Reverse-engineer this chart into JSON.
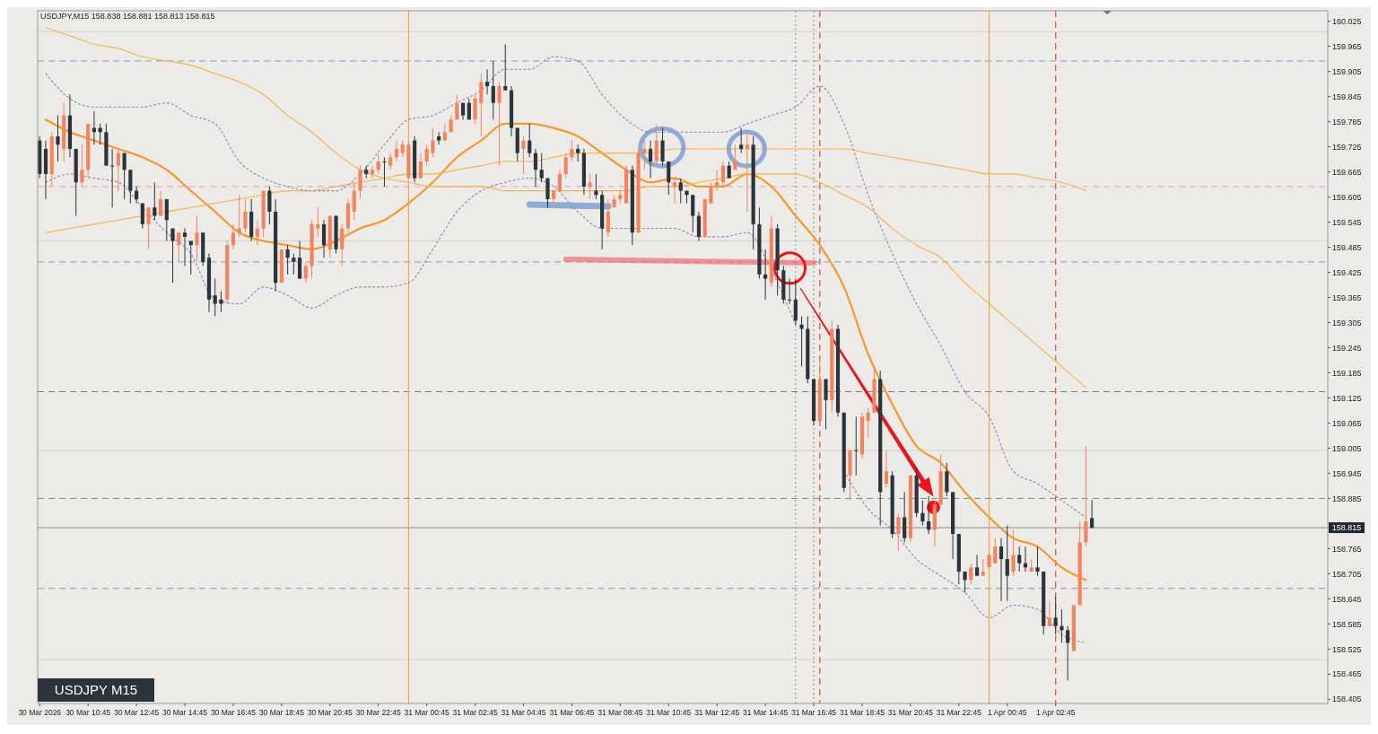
{
  "chart_data": {
    "type": "candlestick",
    "title": "USDJPY,M15  158.838 158.881 158.813 158.815",
    "annotations": [
      "USDJPY M15"
    ],
    "colors": [
      "#2b333b",
      "#2b333b",
      "#f4845f",
      "#2b333b",
      "#f4845f",
      "#2b333b",
      "#2b333b",
      "#f4845f",
      "#f4845f",
      "#2b333b",
      "#2b333b",
      "#2b333b",
      "#2b333b",
      "#f4845f",
      "#2b333b",
      "#2b333b",
      "#2b333b",
      "#2b333b",
      "#f4845f",
      "#2b333b",
      "#f4845f",
      "#2b333b",
      "#2b333b",
      "#f4845f",
      "#2b333b",
      "#2b333b",
      "#f4845f",
      "#2b333b",
      "#2b333b",
      "#2b333b",
      "#2b333b",
      "#f4845f",
      "#f4845f",
      "#f4845f",
      "#f4845f",
      "#2b333b",
      "#f4845f",
      "#f4845f",
      "#2b333b",
      "#2b333b",
      "#f4845f",
      "#2b333b",
      "#2b333b",
      "#2b333b",
      "#f4845f",
      "#f4845f",
      "#f4845f",
      "#2b333b",
      "#f4845f",
      "#2b333b",
      "#f4845f",
      "#f4845f",
      "#f4845f",
      "#f4845f",
      "#2b333b",
      "#f4845f",
      "#f4845f",
      "#2b333b",
      "#f4845f",
      "#f4845f",
      "#f4845f",
      "#f4845f",
      "#2b333b",
      "#f4845f",
      "#f4845f",
      "#f4845f",
      "#2b333b",
      "#f4845f",
      "#f4845f",
      "#f4845f",
      "#2b333b",
      "#2b333b",
      "#f4845f",
      "#f4845f",
      "#2b333b",
      "#2b333b",
      "#f4845f",
      "#2b333b",
      "#2b333b",
      "#2b333b",
      "#f4845f",
      "#2b333b",
      "#2b333b",
      "#2b333b",
      "#2b333b",
      "#f4845f",
      "#f4845f",
      "#f4845f",
      "#f4845f",
      "#2b333b",
      "#2b333b",
      "#f4845f",
      "#2b333b",
      "#2b333b",
      "#f4845f",
      "#f4845f",
      "#f4845f",
      "#f4845f",
      "#2b333b",
      "#f4845f",
      "#f4845f",
      "#2b333b",
      "#f4845f",
      "#2b333b",
      "#2b333b",
      "#f4845f",
      "#2b333b",
      "#2b333b",
      "#2b333b",
      "#2b333b",
      "#f4845f",
      "#f4845f",
      "#f4845f",
      "#f4845f",
      "#2b333b",
      "#f4845f",
      "#2b333b",
      "#f4845f",
      "#2b333b",
      "#2b333b",
      "#2b333b",
      "#f4845f",
      "#2b333b",
      "#2b333b",
      "#2b333b",
      "#2b333b",
      "#2b333b",
      "#2b333b",
      "#2b333b",
      "#f4845f",
      "#2b333b",
      "#f4845f",
      "#2b333b",
      "#2b333b",
      "#f4845f",
      "#2b333b",
      "#f4845f",
      "#f4845f",
      "#f4845f",
      "#2b333b",
      "#f4845f",
      "#2b333b",
      "#f4845f",
      "#2b333b",
      "#f4845f",
      "#2b333b",
      "#2b333b",
      "#2b333b",
      "#f4845f",
      "#f4845f",
      "#2b333b",
      "#2b333b",
      "#2b333b",
      "#2b333b",
      "#f4845f",
      "#2b333b",
      "#f4845f",
      "#f4845f",
      "#f4845f",
      "#2b333b",
      "#2b333b",
      "#f4845f",
      "#2b333b",
      "#2b333b",
      "#f4845f",
      "#2b333b",
      "#2b333b",
      "#f4845f",
      "#2b333b",
      "#2b333b",
      "#2b333b",
      "#f4845f",
      "#f4845f",
      "#f4845f",
      "#2b333b"
    ],
    "x": [
      "2026-03-30T08:45",
      "2026-03-30T09:00",
      "2026-03-30T09:15",
      "2026-03-30T09:30",
      "2026-03-30T09:45",
      "2026-03-30T10:00",
      "2026-03-30T10:15",
      "2026-03-30T10:30",
      "2026-03-30T10:45",
      "2026-03-30T11:00",
      "2026-03-30T11:15",
      "2026-03-30T11:30",
      "2026-03-30T11:45",
      "2026-03-30T12:00",
      "2026-03-30T12:15",
      "2026-03-30T12:30",
      "2026-03-30T12:45",
      "2026-03-30T13:00",
      "2026-03-30T13:15",
      "2026-03-30T13:30",
      "2026-03-30T13:45",
      "2026-03-30T14:00",
      "2026-03-30T14:15",
      "2026-03-30T14:30",
      "2026-03-30T14:45",
      "2026-03-30T15:00",
      "2026-03-30T15:15",
      "2026-03-30T15:30",
      "2026-03-30T15:45",
      "2026-03-30T16:00",
      "2026-03-30T16:15",
      "2026-03-30T16:30",
      "2026-03-30T16:45",
      "2026-03-30T17:00",
      "2026-03-30T17:15",
      "2026-03-30T17:30",
      "2026-03-30T17:45",
      "2026-03-30T18:00",
      "2026-03-30T18:15",
      "2026-03-30T18:30",
      "2026-03-30T18:45",
      "2026-03-30T19:00",
      "2026-03-30T19:15",
      "2026-03-30T19:30",
      "2026-03-30T19:45",
      "2026-03-30T20:00",
      "2026-03-30T20:15",
      "2026-03-30T20:30",
      "2026-03-30T20:45",
      "2026-03-30T21:00",
      "2026-03-30T21:15",
      "2026-03-30T21:30",
      "2026-03-30T21:45",
      "2026-03-30T22:00",
      "2026-03-30T22:15",
      "2026-03-30T22:30",
      "2026-03-30T22:45",
      "2026-03-30T23:00",
      "2026-03-30T23:15",
      "2026-03-30T23:30",
      "2026-03-30T23:45",
      "2026-03-31T00:00",
      "2026-03-31T00:15",
      "2026-03-31T00:30",
      "2026-03-31T00:45",
      "2026-03-31T01:00",
      "2026-03-31T01:15",
      "2026-03-31T01:30",
      "2026-03-31T01:45",
      "2026-03-31T02:00",
      "2026-03-31T02:15",
      "2026-03-31T02:30",
      "2026-03-31T02:45",
      "2026-03-31T03:00",
      "2026-03-31T03:15",
      "2026-03-31T03:30",
      "2026-03-31T03:45",
      "2026-03-31T04:00",
      "2026-03-31T04:15",
      "2026-03-31T04:30",
      "2026-03-31T04:45",
      "2026-03-31T05:00",
      "2026-03-31T05:15",
      "2026-03-31T05:30",
      "2026-03-31T05:45",
      "2026-03-31T06:00",
      "2026-03-31T06:15",
      "2026-03-31T06:30",
      "2026-03-31T06:45",
      "2026-03-31T07:00",
      "2026-03-31T07:15",
      "2026-03-31T07:30",
      "2026-03-31T07:45",
      "2026-03-31T08:00",
      "2026-03-31T08:15",
      "2026-03-31T08:30",
      "2026-03-31T08:45",
      "2026-03-31T09:00",
      "2026-03-31T09:15",
      "2026-03-31T09:30",
      "2026-03-31T09:45",
      "2026-03-31T10:00",
      "2026-03-31T10:15",
      "2026-03-31T10:30",
      "2026-03-31T10:45",
      "2026-03-31T11:00",
      "2026-03-31T11:15",
      "2026-03-31T11:30",
      "2026-03-31T11:45",
      "2026-03-31T12:00",
      "2026-03-31T12:15",
      "2026-03-31T12:30",
      "2026-03-31T12:45",
      "2026-03-31T13:00",
      "2026-03-31T13:15",
      "2026-03-31T13:30",
      "2026-03-31T13:45",
      "2026-03-31T14:00",
      "2026-03-31T14:15",
      "2026-03-31T14:30",
      "2026-03-31T14:45",
      "2026-03-31T15:00",
      "2026-03-31T15:15",
      "2026-03-31T15:30",
      "2026-03-31T15:45",
      "2026-03-31T16:00",
      "2026-03-31T16:15",
      "2026-03-31T16:30",
      "2026-03-31T16:45",
      "2026-03-31T17:00",
      "2026-03-31T17:15",
      "2026-03-31T17:30",
      "2026-03-31T17:45",
      "2026-03-31T18:00",
      "2026-03-31T18:15",
      "2026-03-31T18:30",
      "2026-03-31T18:45",
      "2026-03-31T19:00",
      "2026-03-31T19:15",
      "2026-03-31T19:30",
      "2026-03-31T19:45",
      "2026-03-31T20:00",
      "2026-03-31T20:15",
      "2026-03-31T20:30",
      "2026-03-31T20:45",
      "2026-03-31T21:00",
      "2026-03-31T21:15",
      "2026-03-31T21:30",
      "2026-03-31T21:45",
      "2026-03-31T22:00",
      "2026-03-31T22:15",
      "2026-03-31T22:30",
      "2026-03-31T22:45",
      "2026-03-31T23:00",
      "2026-03-31T23:15",
      "2026-03-31T23:30",
      "2026-03-31T23:45",
      "2026-04-01T00:00",
      "2026-04-01T00:15",
      "2026-04-01T00:30",
      "2026-04-01T00:45",
      "2026-04-01T01:00",
      "2026-04-01T01:15",
      "2026-04-01T01:30",
      "2026-04-01T01:45",
      "2026-04-01T02:00",
      "2026-04-01T02:15",
      "2026-04-01T02:30",
      "2026-04-01T02:45",
      "2026-04-01T03:00",
      "2026-04-01T03:15",
      "2026-04-01T03:30",
      "2026-04-01T03:45",
      "2026-04-01T04:00",
      "2026-04-01T04:15"
    ],
    "ohlc": [
      [
        159.74,
        159.75,
        159.65,
        159.66
      ],
      [
        159.72,
        159.74,
        159.6,
        159.66
      ],
      [
        159.66,
        159.76,
        159.63,
        159.75
      ],
      [
        159.75,
        159.8,
        159.69,
        159.73
      ],
      [
        159.72,
        159.83,
        159.69,
        159.8
      ],
      [
        159.8,
        159.85,
        159.7,
        159.72
      ],
      [
        159.72,
        159.72,
        159.56,
        159.64
      ],
      [
        159.64,
        159.73,
        159.63,
        159.67
      ],
      [
        159.67,
        159.78,
        159.65,
        159.78
      ],
      [
        159.77,
        159.81,
        159.73,
        159.76
      ],
      [
        159.77,
        159.78,
        159.73,
        159.76
      ],
      [
        159.76,
        159.78,
        159.68,
        159.68
      ],
      [
        159.68,
        159.72,
        159.58,
        159.68
      ],
      [
        159.68,
        159.72,
        159.62,
        159.71
      ],
      [
        159.71,
        159.71,
        159.6,
        159.67
      ],
      [
        159.67,
        159.67,
        159.59,
        159.62
      ],
      [
        159.62,
        159.63,
        159.59,
        159.6
      ],
      [
        159.59,
        159.59,
        159.53,
        159.54
      ],
      [
        159.54,
        159.58,
        159.48,
        159.58
      ],
      [
        159.58,
        159.64,
        159.55,
        159.56
      ],
      [
        159.56,
        159.62,
        159.56,
        159.6
      ],
      [
        159.6,
        159.6,
        159.5,
        159.55
      ],
      [
        159.53,
        159.53,
        159.4,
        159.5
      ],
      [
        159.49,
        159.52,
        159.45,
        159.52
      ],
      [
        159.52,
        159.53,
        159.44,
        159.51
      ],
      [
        159.5,
        159.5,
        159.42,
        159.49
      ],
      [
        159.49,
        159.56,
        159.45,
        159.52
      ],
      [
        159.52,
        159.52,
        159.44,
        159.45
      ],
      [
        159.46,
        159.47,
        159.33,
        159.36
      ],
      [
        159.37,
        159.41,
        159.32,
        159.35
      ],
      [
        159.36,
        159.38,
        159.33,
        159.35
      ],
      [
        159.36,
        159.5,
        159.35,
        159.49
      ],
      [
        159.49,
        159.54,
        159.48,
        159.52
      ],
      [
        159.52,
        159.61,
        159.51,
        159.53
      ],
      [
        159.53,
        159.6,
        159.52,
        159.57
      ],
      [
        159.57,
        159.6,
        159.5,
        159.51
      ],
      [
        159.51,
        159.55,
        159.49,
        159.53
      ],
      [
        159.53,
        159.62,
        159.51,
        159.62
      ],
      [
        159.62,
        159.63,
        159.54,
        159.57
      ],
      [
        159.57,
        159.6,
        159.38,
        159.4
      ],
      [
        159.4,
        159.48,
        159.4,
        159.48
      ],
      [
        159.48,
        159.49,
        159.42,
        159.46
      ],
      [
        159.46,
        159.47,
        159.42,
        159.45
      ],
      [
        159.46,
        159.5,
        159.41,
        159.41
      ],
      [
        159.41,
        159.45,
        159.4,
        159.44
      ],
      [
        159.44,
        159.55,
        159.41,
        159.54
      ],
      [
        159.53,
        159.58,
        159.51,
        159.54
      ],
      [
        159.54,
        159.55,
        159.46,
        159.49
      ],
      [
        159.48,
        159.56,
        159.46,
        159.56
      ],
      [
        159.56,
        159.56,
        159.47,
        159.48
      ],
      [
        159.48,
        159.54,
        159.44,
        159.53
      ],
      [
        159.53,
        159.6,
        159.52,
        159.59
      ],
      [
        159.57,
        159.64,
        159.55,
        159.62
      ],
      [
        159.62,
        159.68,
        159.6,
        159.67
      ],
      [
        159.67,
        159.68,
        159.65,
        159.66
      ],
      [
        159.66,
        159.68,
        159.65,
        159.67
      ],
      [
        159.67,
        159.71,
        159.66,
        159.69
      ],
      [
        159.69,
        159.7,
        159.63,
        159.69
      ],
      [
        159.68,
        159.71,
        159.67,
        159.7
      ],
      [
        159.7,
        159.74,
        159.69,
        159.72
      ],
      [
        159.71,
        159.74,
        159.7,
        159.73
      ],
      [
        159.65,
        159.74,
        159.65,
        159.73
      ],
      [
        159.74,
        159.75,
        159.64,
        159.65
      ],
      [
        159.65,
        159.71,
        159.65,
        159.69
      ],
      [
        159.69,
        159.73,
        159.68,
        159.72
      ],
      [
        159.71,
        159.77,
        159.7,
        159.74
      ],
      [
        159.75,
        159.76,
        159.73,
        159.74
      ],
      [
        159.74,
        159.78,
        159.74,
        159.76
      ],
      [
        159.76,
        159.8,
        159.76,
        159.79
      ],
      [
        159.79,
        159.85,
        159.79,
        159.83
      ],
      [
        159.83,
        159.83,
        159.79,
        159.8
      ],
      [
        159.83,
        159.84,
        159.79,
        159.79
      ],
      [
        159.79,
        159.85,
        159.78,
        159.84
      ],
      [
        159.83,
        159.9,
        159.75,
        159.88
      ],
      [
        159.88,
        159.91,
        159.85,
        159.87
      ],
      [
        159.87,
        159.93,
        159.79,
        159.83
      ],
      [
        159.83,
        159.88,
        159.68,
        159.87
      ],
      [
        159.87,
        159.97,
        159.86,
        159.86
      ],
      [
        159.86,
        159.87,
        159.75,
        159.77
      ],
      [
        159.77,
        159.77,
        159.69,
        159.71
      ],
      [
        159.72,
        159.75,
        159.66,
        159.74
      ],
      [
        159.74,
        159.78,
        159.7,
        159.71
      ],
      [
        159.71,
        159.72,
        159.63,
        159.67
      ],
      [
        159.67,
        159.71,
        159.64,
        159.65
      ],
      [
        159.65,
        159.65,
        159.58,
        159.6
      ],
      [
        159.6,
        159.62,
        159.59,
        159.62
      ],
      [
        159.62,
        159.67,
        159.62,
        159.66
      ],
      [
        159.66,
        159.71,
        159.65,
        159.7
      ],
      [
        159.7,
        159.74,
        159.69,
        159.72
      ],
      [
        159.72,
        159.73,
        159.69,
        159.71
      ],
      [
        159.71,
        159.72,
        159.61,
        159.63
      ],
      [
        159.63,
        159.66,
        159.6,
        159.64
      ],
      [
        159.62,
        159.66,
        159.6,
        159.61
      ],
      [
        159.61,
        159.62,
        159.48,
        159.53
      ],
      [
        159.52,
        159.6,
        159.51,
        159.57
      ],
      [
        159.58,
        159.61,
        159.58,
        159.6
      ],
      [
        159.6,
        159.62,
        159.59,
        159.61
      ],
      [
        159.59,
        159.68,
        159.59,
        159.67
      ],
      [
        159.67,
        159.68,
        159.49,
        159.52
      ],
      [
        159.52,
        159.72,
        159.52,
        159.71
      ],
      [
        159.71,
        159.74,
        159.67,
        159.72
      ],
      [
        159.72,
        159.74,
        159.65,
        159.69
      ],
      [
        159.69,
        159.78,
        159.68,
        159.74
      ],
      [
        159.74,
        159.77,
        159.68,
        159.69
      ],
      [
        159.69,
        159.69,
        159.61,
        159.64
      ],
      [
        159.63,
        159.65,
        159.59,
        159.64
      ],
      [
        159.64,
        159.65,
        159.59,
        159.62
      ],
      [
        159.62,
        159.62,
        159.59,
        159.61
      ],
      [
        159.61,
        159.61,
        159.52,
        159.56
      ],
      [
        159.56,
        159.57,
        159.5,
        159.51
      ],
      [
        159.51,
        159.6,
        159.51,
        159.6
      ],
      [
        159.59,
        159.64,
        159.59,
        159.63
      ],
      [
        159.63,
        159.67,
        159.62,
        159.64
      ],
      [
        159.64,
        159.69,
        159.63,
        159.68
      ],
      [
        159.68,
        159.69,
        159.65,
        159.65
      ],
      [
        159.67,
        159.73,
        159.67,
        159.69
      ],
      [
        159.73,
        159.77,
        159.71,
        159.72
      ],
      [
        159.72,
        159.76,
        159.57,
        159.73
      ],
      [
        159.73,
        159.75,
        159.48,
        159.54
      ],
      [
        159.54,
        159.58,
        159.41,
        159.42
      ],
      [
        159.42,
        159.48,
        159.36,
        159.41
      ],
      [
        159.4,
        159.56,
        159.39,
        159.53
      ],
      [
        159.53,
        159.54,
        159.37,
        159.43
      ],
      [
        159.43,
        159.44,
        159.35,
        159.36
      ],
      [
        159.36,
        159.41,
        159.35,
        159.36
      ],
      [
        159.36,
        159.41,
        159.3,
        159.31
      ],
      [
        159.3,
        159.32,
        159.2,
        159.29
      ],
      [
        159.29,
        159.32,
        159.16,
        159.17
      ],
      [
        159.17,
        159.17,
        159.06,
        159.07
      ],
      [
        159.07,
        159.22,
        159.06,
        159.17
      ],
      [
        159.17,
        159.17,
        159.05,
        159.12
      ],
      [
        159.12,
        159.31,
        159.09,
        159.29
      ],
      [
        159.29,
        159.3,
        159.08,
        159.09
      ],
      [
        159.09,
        159.09,
        158.9,
        158.91
      ],
      [
        158.94,
        159.0,
        158.88,
        159.0
      ],
      [
        159.0,
        159.08,
        158.94,
        159.0
      ],
      [
        158.99,
        159.09,
        158.98,
        159.08
      ],
      [
        159.07,
        159.1,
        159.03,
        159.09
      ],
      [
        159.09,
        159.2,
        159.09,
        159.17
      ],
      [
        159.17,
        159.19,
        158.82,
        158.9
      ],
      [
        158.92,
        159.0,
        158.91,
        158.95
      ],
      [
        158.94,
        158.95,
        158.79,
        158.8
      ],
      [
        158.8,
        158.85,
        158.76,
        158.84
      ],
      [
        158.84,
        158.9,
        158.78,
        158.79
      ],
      [
        158.79,
        158.94,
        158.78,
        158.94
      ],
      [
        158.94,
        158.96,
        158.84,
        158.85
      ],
      [
        158.85,
        158.88,
        158.82,
        158.83
      ],
      [
        158.83,
        158.89,
        158.8,
        158.81
      ],
      [
        158.81,
        158.88,
        158.77,
        158.87
      ],
      [
        158.87,
        158.99,
        158.87,
        158.95
      ],
      [
        158.95,
        158.97,
        158.89,
        158.9
      ],
      [
        158.9,
        158.9,
        158.74,
        158.8
      ],
      [
        158.8,
        158.8,
        158.68,
        158.71
      ],
      [
        158.71,
        158.71,
        158.66,
        158.69
      ],
      [
        158.69,
        158.73,
        158.68,
        158.72
      ],
      [
        158.72,
        158.75,
        158.7,
        158.7
      ],
      [
        158.7,
        158.74,
        158.7,
        158.71
      ],
      [
        158.72,
        158.76,
        158.72,
        158.75
      ],
      [
        158.73,
        158.79,
        158.73,
        158.77
      ],
      [
        158.77,
        158.79,
        158.64,
        158.74
      ],
      [
        158.74,
        158.82,
        158.64,
        158.7
      ],
      [
        158.71,
        158.81,
        158.7,
        158.75
      ],
      [
        158.75,
        158.77,
        158.71,
        158.73
      ],
      [
        158.73,
        158.77,
        158.71,
        158.72
      ],
      [
        158.71,
        158.74,
        158.71,
        158.72
      ],
      [
        158.72,
        158.77,
        158.7,
        158.71
      ],
      [
        158.71,
        158.71,
        158.56,
        158.58
      ],
      [
        158.58,
        158.64,
        158.58,
        158.6
      ],
      [
        158.6,
        158.65,
        158.56,
        158.58
      ],
      [
        158.58,
        158.62,
        158.54,
        158.57
      ],
      [
        158.57,
        158.58,
        158.45,
        158.54
      ],
      [
        158.52,
        158.63,
        158.52,
        158.63
      ],
      [
        158.63,
        158.83,
        158.63,
        158.78
      ],
      [
        158.78,
        159.01,
        158.77,
        158.83
      ],
      [
        158.838,
        158.881,
        158.813,
        158.815
      ]
    ],
    "series": [
      {
        "type": "line",
        "color": "#f39a2e",
        "line_style": "solid",
        "x": [
          "2026-03-30T09:00",
          "2026-03-30T10:00",
          "2026-03-30T11:00",
          "2026-03-30T12:00",
          "2026-03-30T13:00",
          "2026-03-30T14:00",
          "2026-03-30T15:00",
          "2026-03-30T16:00",
          "2026-03-30T17:00",
          "2026-03-30T18:00",
          "2026-03-30T19:00",
          "2026-03-30T20:00",
          "2026-03-30T21:00",
          "2026-03-30T22:00",
          "2026-03-30T23:00",
          "2026-03-31T00:00",
          "2026-03-31T01:00",
          "2026-03-31T02:00",
          "2026-03-31T03:00",
          "2026-03-31T04:00",
          "2026-03-31T05:00",
          "2026-03-31T06:00",
          "2026-03-31T07:00",
          "2026-03-31T08:00",
          "2026-03-31T09:00",
          "2026-03-31T10:00",
          "2026-03-31T11:00",
          "2026-03-31T12:00",
          "2026-03-31T13:00",
          "2026-03-31T14:00",
          "2026-03-31T15:00",
          "2026-03-31T16:00",
          "2026-03-31T17:00",
          "2026-03-31T18:00",
          "2026-03-31T19:00",
          "2026-03-31T20:00",
          "2026-03-31T21:00",
          "2026-03-31T22:00",
          "2026-03-31T23:00",
          "2026-04-01T00:00",
          "2026-04-01T01:00",
          "2026-04-01T02:00",
          "2026-04-01T03:00",
          "2026-04-01T04:00"
        ],
        "values": [
          159.79,
          159.76,
          159.74,
          159.72,
          159.7,
          159.67,
          159.62,
          159.57,
          159.52,
          159.5,
          159.49,
          159.48,
          159.5,
          159.53,
          159.55,
          159.59,
          159.64,
          159.7,
          159.74,
          159.78,
          159.78,
          159.77,
          159.75,
          159.71,
          159.67,
          159.64,
          159.65,
          159.63,
          159.63,
          159.66,
          159.63,
          159.56,
          159.49,
          159.39,
          159.23,
          159.11,
          159.01,
          158.97,
          158.9,
          158.84,
          158.79,
          158.77,
          158.72,
          158.69
        ]
      },
      {
        "type": "line",
        "color": "#f5b24e",
        "line_style": "solid",
        "x": [
          "2026-03-30T09:00",
          "2026-03-30T10:00",
          "2026-03-30T11:00",
          "2026-03-30T12:00",
          "2026-03-30T13:00",
          "2026-03-30T14:00",
          "2026-03-30T15:00",
          "2026-03-30T16:00",
          "2026-03-30T17:00",
          "2026-03-30T18:00",
          "2026-03-30T19:00",
          "2026-03-30T20:00",
          "2026-03-30T21:00",
          "2026-03-30T22:00",
          "2026-03-30T23:00",
          "2026-03-31T00:00",
          "2026-03-31T01:00",
          "2026-03-31T02:00",
          "2026-03-31T03:00",
          "2026-03-31T04:00",
          "2026-03-31T05:00",
          "2026-03-31T06:00",
          "2026-03-31T07:00",
          "2026-03-31T08:00",
          "2026-03-31T09:00",
          "2026-03-31T10:00",
          "2026-03-31T11:00",
          "2026-03-31T12:00",
          "2026-03-31T13:00",
          "2026-03-31T14:00",
          "2026-03-31T15:00",
          "2026-03-31T16:00",
          "2026-03-31T17:00",
          "2026-03-31T18:00",
          "2026-03-31T19:00",
          "2026-03-31T20:00",
          "2026-03-31T21:00",
          "2026-03-31T22:00",
          "2026-03-31T23:00",
          "2026-04-01T00:00",
          "2026-04-01T01:00",
          "2026-04-01T02:00",
          "2026-04-01T03:00",
          "2026-04-01T04:00"
        ],
        "values": [
          160.01,
          159.99,
          159.97,
          159.96,
          159.94,
          159.93,
          159.92,
          159.9,
          159.88,
          159.85,
          159.8,
          159.76,
          159.71,
          159.67,
          159.65,
          159.64,
          159.63,
          159.63,
          159.63,
          159.62,
          159.62,
          159.62,
          159.62,
          159.62,
          159.62,
          159.63,
          159.63,
          159.64,
          159.65,
          159.66,
          159.66,
          159.66,
          159.64,
          159.61,
          159.58,
          159.53,
          159.49,
          159.46,
          159.4,
          159.35,
          159.3,
          159.25,
          159.2,
          159.15
        ]
      },
      {
        "type": "line",
        "color": "#f5b24e",
        "line_style": "solid",
        "x": [
          "2026-03-30T09:00",
          "2026-03-30T10:00",
          "2026-03-30T11:00",
          "2026-03-30T12:00",
          "2026-03-30T13:00",
          "2026-03-30T14:00",
          "2026-03-30T15:00",
          "2026-03-30T16:00",
          "2026-03-30T17:00",
          "2026-03-30T18:00",
          "2026-03-30T19:00",
          "2026-03-30T20:00",
          "2026-03-30T21:00",
          "2026-03-30T22:00",
          "2026-03-30T23:00",
          "2026-03-31T00:00",
          "2026-03-31T01:00",
          "2026-03-31T02:00",
          "2026-03-31T03:00",
          "2026-03-31T04:00",
          "2026-03-31T05:00",
          "2026-03-31T06:00",
          "2026-03-31T07:00",
          "2026-03-31T08:00",
          "2026-03-31T09:00",
          "2026-03-31T10:00",
          "2026-03-31T11:00",
          "2026-03-31T12:00",
          "2026-03-31T13:00",
          "2026-03-31T14:00",
          "2026-03-31T15:00",
          "2026-03-31T16:00",
          "2026-03-31T17:00",
          "2026-03-31T18:00",
          "2026-03-31T19:00",
          "2026-03-31T20:00",
          "2026-03-31T21:00",
          "2026-03-31T22:00",
          "2026-03-31T23:00",
          "2026-04-01T00:00",
          "2026-04-01T01:00",
          "2026-04-01T02:00",
          "2026-04-01T03:00",
          "2026-04-01T04:00"
        ],
        "values": [
          159.52,
          159.53,
          159.54,
          159.55,
          159.56,
          159.57,
          159.58,
          159.59,
          159.6,
          159.61,
          159.62,
          159.62,
          159.63,
          159.64,
          159.65,
          159.66,
          159.66,
          159.67,
          159.68,
          159.69,
          159.69,
          159.7,
          159.71,
          159.71,
          159.71,
          159.71,
          159.72,
          159.72,
          159.72,
          159.72,
          159.72,
          159.72,
          159.72,
          159.72,
          159.71,
          159.7,
          159.69,
          159.68,
          159.67,
          159.66,
          159.66,
          159.65,
          159.64,
          159.62
        ]
      },
      {
        "type": "line",
        "color": "#8a85b5",
        "line_style": "dotted",
        "x": [
          "2026-03-30T09:00",
          "2026-03-30T10:00",
          "2026-03-30T11:00",
          "2026-03-30T12:00",
          "2026-03-30T13:00",
          "2026-03-30T14:00",
          "2026-03-30T15:00",
          "2026-03-30T16:00",
          "2026-03-30T17:00",
          "2026-03-30T18:00",
          "2026-03-30T19:00",
          "2026-03-30T20:00",
          "2026-03-30T21:00",
          "2026-03-30T22:00",
          "2026-03-30T23:00",
          "2026-03-31T00:00",
          "2026-03-31T01:00",
          "2026-03-31T02:00",
          "2026-03-31T03:00",
          "2026-03-31T04:00",
          "2026-03-31T05:00",
          "2026-03-31T06:00",
          "2026-03-31T07:00",
          "2026-03-31T08:00",
          "2026-03-31T09:00",
          "2026-03-31T10:00",
          "2026-03-31T11:00",
          "2026-03-31T12:00",
          "2026-03-31T13:00",
          "2026-03-31T14:00",
          "2026-03-31T15:00",
          "2026-03-31T16:00",
          "2026-03-31T17:00",
          "2026-03-31T18:00",
          "2026-03-31T19:00",
          "2026-03-31T20:00",
          "2026-03-31T21:00",
          "2026-03-31T22:00",
          "2026-03-31T23:00",
          "2026-04-01T00:00",
          "2026-04-01T01:00",
          "2026-04-01T02:00",
          "2026-04-01T03:00",
          "2026-04-01T04:00"
        ],
        "values": [
          159.9,
          159.84,
          159.82,
          159.82,
          159.82,
          159.83,
          159.8,
          159.78,
          159.69,
          159.65,
          159.63,
          159.62,
          159.62,
          159.66,
          159.73,
          159.79,
          159.8,
          159.83,
          159.86,
          159.91,
          159.91,
          159.94,
          159.93,
          159.85,
          159.79,
          159.76,
          159.76,
          159.76,
          159.76,
          159.78,
          159.8,
          159.82,
          159.87,
          159.78,
          159.61,
          159.47,
          159.35,
          159.25,
          159.14,
          159.08,
          158.95,
          158.92,
          158.88,
          158.84
        ]
      },
      {
        "type": "line",
        "color": "#8a85b5",
        "line_style": "dotted",
        "x": [
          "2026-03-30T09:00",
          "2026-03-30T10:00",
          "2026-03-30T11:00",
          "2026-03-30T12:00",
          "2026-03-30T13:00",
          "2026-03-30T14:00",
          "2026-03-30T15:00",
          "2026-03-30T16:00",
          "2026-03-30T17:00",
          "2026-03-30T18:00",
          "2026-03-30T19:00",
          "2026-03-30T20:00",
          "2026-03-30T21:00",
          "2026-03-30T22:00",
          "2026-03-30T23:00",
          "2026-03-31T00:00",
          "2026-03-31T01:00",
          "2026-03-31T02:00",
          "2026-03-31T03:00",
          "2026-03-31T04:00",
          "2026-03-31T05:00",
          "2026-03-31T06:00",
          "2026-03-31T07:00",
          "2026-03-31T08:00",
          "2026-03-31T09:00",
          "2026-03-31T10:00",
          "2026-03-31T11:00",
          "2026-03-31T12:00",
          "2026-03-31T13:00",
          "2026-03-31T14:00",
          "2026-03-31T15:00",
          "2026-03-31T16:00",
          "2026-03-31T17:00",
          "2026-03-31T18:00",
          "2026-03-31T19:00",
          "2026-03-31T20:00",
          "2026-03-31T21:00",
          "2026-03-31T22:00",
          "2026-03-31T23:00",
          "2026-04-01T00:00",
          "2026-04-01T01:00",
          "2026-04-01T02:00",
          "2026-04-01T03:00",
          "2026-04-01T04:00"
        ],
        "values": [
          159.64,
          159.66,
          159.65,
          159.64,
          159.58,
          159.52,
          159.47,
          159.36,
          159.35,
          159.39,
          159.37,
          159.34,
          159.37,
          159.39,
          159.39,
          159.4,
          159.48,
          159.57,
          159.62,
          159.64,
          159.65,
          159.63,
          159.57,
          159.53,
          159.53,
          159.53,
          159.53,
          159.51,
          159.51,
          159.52,
          159.43,
          159.3,
          null,
          158.95,
          158.86,
          158.81,
          158.74,
          158.7,
          158.66,
          158.6,
          158.63,
          158.62,
          158.56,
          158.54
        ]
      }
    ],
    "xlim": [
      "2026-03-30T08:40",
      "2026-04-01T14:00"
    ],
    "xticks": [
      {
        "value": "2026-03-30T08:45",
        "label": "30 Mar 2026"
      },
      {
        "value": "2026-03-30T10:45",
        "label": "30 Mar 10:45"
      },
      {
        "value": "2026-03-30T12:45",
        "label": "30 Mar 12:45"
      },
      {
        "value": "2026-03-30T14:45",
        "label": "30 Mar 14:45"
      },
      {
        "value": "2026-03-30T16:45",
        "label": "30 Mar 16:45"
      },
      {
        "value": "2026-03-30T18:45",
        "label": "30 Mar 18:45"
      },
      {
        "value": "2026-03-30T20:45",
        "label": "30 Mar 20:45"
      },
      {
        "value": "2026-03-30T22:45",
        "label": "30 Mar 22:45"
      },
      {
        "value": "2026-03-31T00:45",
        "label": "31 Mar 00:45"
      },
      {
        "value": "2026-03-31T02:45",
        "label": "31 Mar 02:45"
      },
      {
        "value": "2026-03-31T04:45",
        "label": "31 Mar 04:45"
      },
      {
        "value": "2026-03-31T06:45",
        "label": "31 Mar 06:45"
      },
      {
        "value": "2026-03-31T08:45",
        "label": "31 Mar 08:45"
      },
      {
        "value": "2026-03-31T10:45",
        "label": "31 Mar 10:45"
      },
      {
        "value": "2026-03-31T12:45",
        "label": "31 Mar 12:45"
      },
      {
        "value": "2026-03-31T14:45",
        "label": "31 Mar 14:45"
      },
      {
        "value": "2026-03-31T16:45",
        "label": "31 Mar 16:45"
      },
      {
        "value": "2026-03-31T18:45",
        "label": "31 Mar 18:45"
      },
      {
        "value": "2026-03-31T20:45",
        "label": "31 Mar 20:45"
      },
      {
        "value": "2026-03-31T22:45",
        "label": "31 Mar 22:45"
      },
      {
        "value": "2026-04-01T00:45",
        "label": "1 Apr 00:45"
      },
      {
        "value": "2026-04-01T02:45",
        "label": "1 Apr 02:45"
      }
    ],
    "ylim": [
      158.395,
      160.05
    ],
    "yticks": [
      158.405,
      158.465,
      158.525,
      158.585,
      158.645,
      158.705,
      158.765,
      158.885,
      158.945,
      159.005,
      159.065,
      159.125,
      159.185,
      159.245,
      159.305,
      159.365,
      159.425,
      159.485,
      159.545,
      159.605,
      159.665,
      159.725,
      159.785,
      159.845,
      159.905,
      159.965,
      160.025
    ],
    "ref_lines": [
      {
        "axis": "y",
        "value": 160.0,
        "color": "#d4d2ce",
        "line_style": "solid"
      },
      {
        "axis": "y",
        "value": 159.5,
        "color": "#d4d2ce",
        "line_style": "solid"
      },
      {
        "axis": "y",
        "value": 159.0,
        "color": "#d4d2ce",
        "line_style": "solid"
      },
      {
        "axis": "y",
        "value": 158.5,
        "color": "#d4d2ce",
        "line_style": "solid"
      },
      {
        "axis": "y",
        "value": 159.93,
        "color": "#7f9cc8",
        "line_style": "dashed"
      },
      {
        "axis": "y",
        "value": 159.45,
        "color": "#7f9cc8",
        "line_style": "dashed"
      },
      {
        "axis": "y",
        "value": 158.67,
        "color": "#7f9cc8",
        "line_style": "dashed"
      },
      {
        "axis": "y",
        "value": 159.63,
        "color": "#e89ac8",
        "line_style": "dashed"
      },
      {
        "axis": "y",
        "value": 159.14,
        "color": "#7a7a7a",
        "line_style": "dashed"
      },
      {
        "axis": "y",
        "value": 158.885,
        "color": "#5a9c6a",
        "line_style": "dashed"
      },
      {
        "axis": "y",
        "value": 158.815,
        "label": "158.815",
        "color": "#8a8a8a",
        "line_style": "solid"
      },
      {
        "axis": "x",
        "value": "2026-03-31T00:00",
        "color": "#f5a640",
        "line_style": "solid"
      },
      {
        "axis": "x",
        "value": "2026-04-01T00:00",
        "color": "#f5a640",
        "line_style": "solid"
      },
      {
        "axis": "x",
        "value": "2026-03-31T16:00",
        "color": "#9a9a9a",
        "line_style": "dotted"
      },
      {
        "axis": "x",
        "value": "2026-03-31T16:45",
        "color": "#9a9a9a",
        "line_style": "dotted"
      },
      {
        "axis": "x",
        "value": "2026-03-31T17:00",
        "color": "#e24b4b",
        "line_style": "dashed"
      },
      {
        "axis": "x",
        "value": "2026-04-01T02:45",
        "color": "#e24b4b",
        "line_style": "dashed"
      }
    ]
  }
}
